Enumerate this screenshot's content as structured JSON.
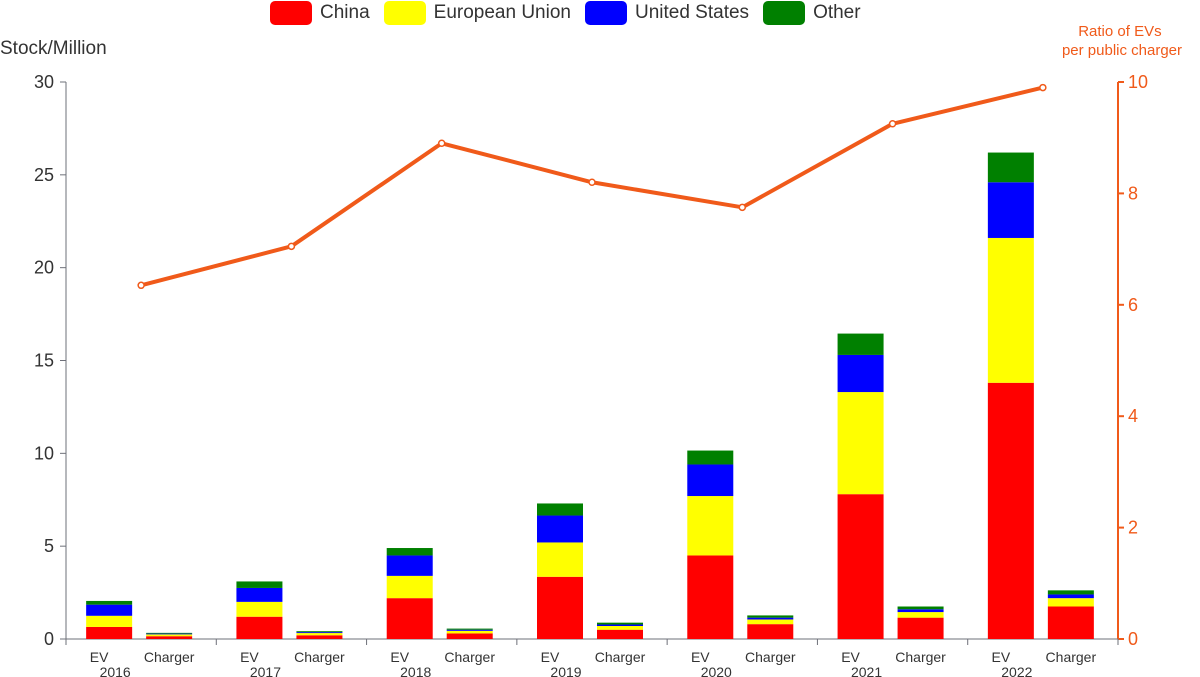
{
  "chart_data": {
    "type": "bar",
    "subtype": "grouped-stacked bar with line on secondary axis",
    "categories": [
      "2016",
      "2017",
      "2018",
      "2019",
      "2020",
      "2021",
      "2022"
    ],
    "groups": [
      "EV",
      "Charger"
    ],
    "ylabel": "Stock/Million",
    "ylabel_right": [
      "Ratio of EVs",
      "per public charger"
    ],
    "ylim": [
      0,
      30
    ],
    "yticks": [
      0,
      5,
      10,
      15,
      20,
      25,
      30
    ],
    "ylim_right": [
      0,
      10
    ],
    "yticks_right": [
      0,
      2,
      4,
      6,
      8,
      10
    ],
    "grid": false,
    "legend_position": "top",
    "series": [
      {
        "name": "China",
        "color": "#ff0000",
        "ev": [
          0.65,
          1.2,
          2.2,
          3.35,
          4.5,
          7.8,
          13.8
        ],
        "charger": [
          0.15,
          0.2,
          0.3,
          0.5,
          0.8,
          1.15,
          1.75
        ]
      },
      {
        "name": "European Union",
        "color": "#ffff00",
        "ev": [
          0.6,
          0.8,
          1.2,
          1.85,
          3.2,
          5.5,
          7.8
        ],
        "charger": [
          0.1,
          0.12,
          0.14,
          0.2,
          0.25,
          0.3,
          0.45
        ]
      },
      {
        "name": "United States",
        "color": "#0000ff",
        "ev": [
          0.6,
          0.75,
          1.1,
          1.45,
          1.7,
          2.0,
          3.0
        ],
        "charger": [
          0.04,
          0.05,
          0.06,
          0.08,
          0.1,
          0.15,
          0.2
        ]
      },
      {
        "name": "Other",
        "color": "#008000",
        "ev": [
          0.2,
          0.35,
          0.4,
          0.65,
          0.75,
          1.15,
          1.6
        ],
        "charger": [
          0.04,
          0.05,
          0.06,
          0.1,
          0.12,
          0.15,
          0.22
        ]
      }
    ],
    "line": {
      "color": "#f05a1a",
      "values": [
        6.35,
        7.05,
        8.9,
        8.2,
        7.75,
        9.25,
        9.9
      ]
    }
  }
}
